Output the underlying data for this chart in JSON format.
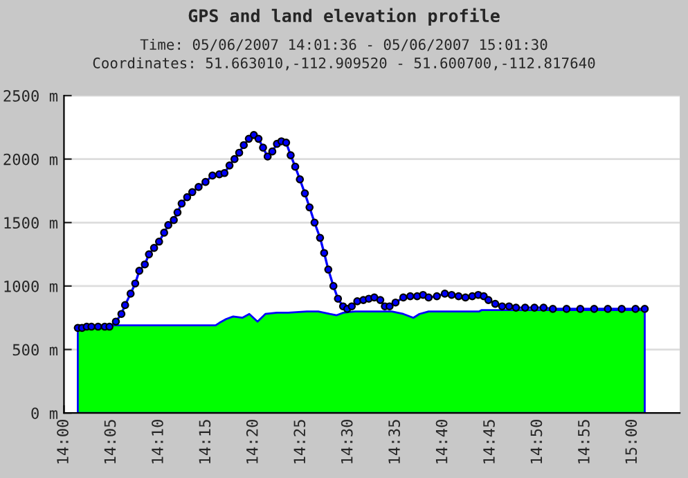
{
  "chart_data": {
    "type": "line",
    "title": "GPS and land elevation profile",
    "subtitle": "Time: 05/06/2007 14:01:36 - 05/06/2007 15:01:30\nCoordinates: 51.663010,-112.909520 - 51.600700,-112.817640",
    "xlim": [
      14,
      15.0833
    ],
    "xticks": [
      {
        "value": 14,
        "label": "14:00"
      },
      {
        "value": 14.0833,
        "label": "14:05"
      },
      {
        "value": 14.1667,
        "label": "14:10"
      },
      {
        "value": 14.25,
        "label": "14:15"
      },
      {
        "value": 14.3333,
        "label": "14:20"
      },
      {
        "value": 14.4167,
        "label": "14:25"
      },
      {
        "value": 14.5,
        "label": "14:30"
      },
      {
        "value": 14.5833,
        "label": "14:35"
      },
      {
        "value": 14.6667,
        "label": "14:40"
      },
      {
        "value": 14.75,
        "label": "14:45"
      },
      {
        "value": 14.8333,
        "label": "14:50"
      },
      {
        "value": 14.9167,
        "label": "14:55"
      },
      {
        "value": 15,
        "label": "15:00"
      }
    ],
    "ylim": [
      0,
      2500
    ],
    "yticks": [
      {
        "value": 0,
        "label": "0 m"
      },
      {
        "value": 500,
        "label": "500 m"
      },
      {
        "value": 1000,
        "label": "1000 m"
      },
      {
        "value": 1500,
        "label": "1500 m"
      },
      {
        "value": 2000,
        "label": "2000 m"
      },
      {
        "value": 2500,
        "label": "2500 m"
      }
    ],
    "grid": "y",
    "series": [
      {
        "type": "area",
        "color": "#00ff00",
        "x": [
          14.0243,
          14.2667,
          14.2733,
          14.2855,
          14.2977,
          14.3138,
          14.326,
          14.3405,
          14.3543,
          14.3745,
          14.3947,
          14.4272,
          14.4473,
          14.4675,
          14.4797,
          14.4917,
          14.5122,
          14.5687,
          14.5767,
          14.597,
          14.6147,
          14.6253,
          14.6415,
          14.7305,
          14.7345,
          15.0217
        ],
        "values": [
          690,
          690,
          710,
          740,
          760,
          750,
          780,
          720,
          780,
          790,
          790,
          800,
          800,
          780,
          770,
          790,
          800,
          800,
          800,
          780,
          750,
          780,
          800,
          800,
          810,
          810
        ]
      },
      {
        "color": "#0000ff",
        "marker": "circle",
        "x": [
          14.0243,
          14.0317,
          14.04,
          14.0483,
          14.06,
          14.0717,
          14.08,
          14.0913,
          14.101,
          14.1075,
          14.1172,
          14.1253,
          14.1325,
          14.1422,
          14.1495,
          14.1585,
          14.1673,
          14.1762,
          14.1835,
          14.1932,
          14.1997,
          14.207,
          14.2167,
          14.2257,
          14.2368,
          14.249,
          14.2612,
          14.2733,
          14.2823,
          14.2912,
          14.3,
          14.3082,
          14.3163,
          14.3252,
          14.334,
          14.3422,
          14.3502,
          14.3583,
          14.3665,
          14.3747,
          14.3825,
          14.3908,
          14.3988,
          14.4068,
          14.415,
          14.4238,
          14.432,
          14.4408,
          14.4505,
          14.4577,
          14.465,
          14.474,
          14.482,
          14.491,
          14.4983,
          14.5063,
          14.516,
          14.5267,
          14.5363,
          14.546,
          14.5565,
          14.5645,
          14.5728,
          14.5833,
          14.597,
          14.6092,
          14.6213,
          14.6317,
          14.6415,
          14.656,
          14.67,
          14.682,
          14.6942,
          14.7063,
          14.7183,
          14.7288,
          14.7385,
          14.7467,
          14.7587,
          14.7708,
          14.783,
          14.7952,
          14.8113,
          14.8277,
          14.8437,
          14.86,
          14.8842,
          14.9083,
          14.9327,
          14.9568,
          14.9812,
          15.0055,
          15.0217
        ],
        "values": [
          670,
          670,
          680,
          680,
          680,
          680,
          680,
          720,
          780,
          850,
          940,
          1020,
          1120,
          1170,
          1250,
          1300,
          1350,
          1420,
          1480,
          1520,
          1580,
          1650,
          1700,
          1740,
          1780,
          1820,
          1870,
          1880,
          1890,
          1950,
          2000,
          2050,
          2110,
          2160,
          2190,
          2160,
          2090,
          2020,
          2060,
          2120,
          2140,
          2130,
          2030,
          1940,
          1840,
          1730,
          1620,
          1500,
          1380,
          1260,
          1130,
          1000,
          900,
          840,
          820,
          840,
          880,
          890,
          900,
          910,
          890,
          840,
          840,
          870,
          910,
          920,
          920,
          930,
          910,
          920,
          940,
          930,
          920,
          910,
          920,
          930,
          920,
          890,
          860,
          840,
          840,
          830,
          830,
          830,
          830,
          820,
          820,
          820,
          820,
          820,
          820,
          820,
          820
        ]
      }
    ]
  }
}
